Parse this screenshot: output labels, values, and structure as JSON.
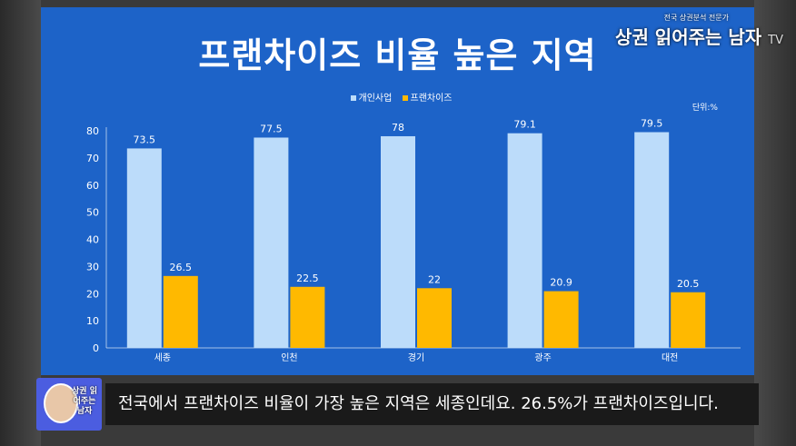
{
  "slide": {
    "title": "프랜차이즈 비율 높은 지역",
    "unit_label": "단위:%"
  },
  "watermark": {
    "line_small": "전국 상권분석 전문가",
    "brand_main": "상권 읽어주는 남자",
    "brand_suffix": "TV"
  },
  "caption": {
    "text": "전국에서 프랜차이즈 비율이 가장 높은 지역은 세종인데요. 26.5%가 프랜차이즈입니다.",
    "avatar_label": "상권 읽어주는 남자"
  },
  "colors": {
    "background": "#1d63c8",
    "series_1": "#bcdcfa",
    "series_2": "#ffb900"
  },
  "chart_data": {
    "type": "bar",
    "title": "프랜차이즈 비율 높은 지역",
    "categories": [
      "세종",
      "인천",
      "경기",
      "광주",
      "대전"
    ],
    "series": [
      {
        "name": "개인사업",
        "values": [
          73.5,
          77.5,
          78,
          79.1,
          79.5
        ]
      },
      {
        "name": "프랜차이즈",
        "values": [
          26.5,
          22.5,
          22,
          20.9,
          20.5
        ]
      }
    ],
    "ylim": [
      0,
      80
    ],
    "yticks": [
      0,
      10,
      20,
      30,
      40,
      50,
      60,
      70,
      80
    ],
    "legend": "top-center",
    "grid": false
  }
}
